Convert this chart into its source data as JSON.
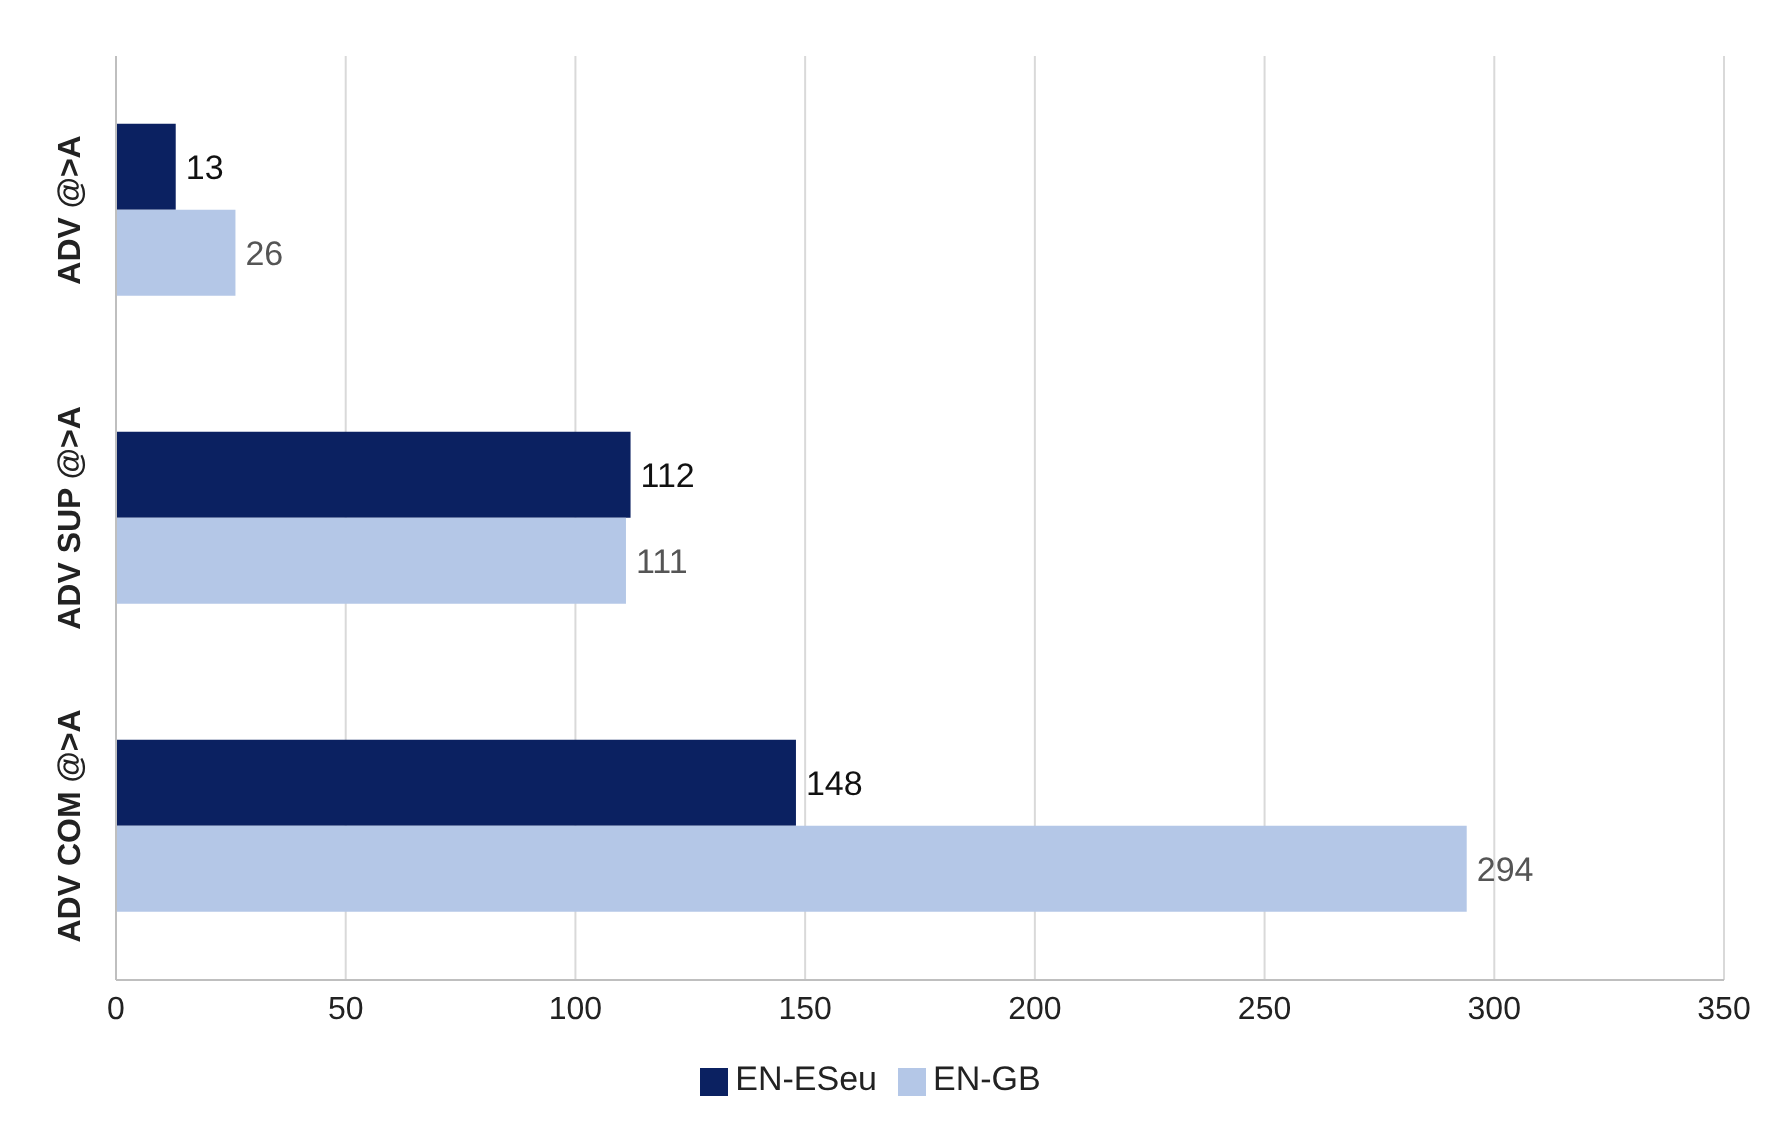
{
  "chart_data": {
    "type": "bar",
    "orientation": "horizontal",
    "categories": [
      "ADV @>A",
      "ADV SUP @>A",
      "ADV COM @>A"
    ],
    "series": [
      {
        "name": "EN-ESeu",
        "color": "#0b2161",
        "values": [
          13,
          112,
          148
        ]
      },
      {
        "name": "EN-GB",
        "color": "#b4c7e7",
        "values": [
          26,
          111,
          294
        ]
      }
    ],
    "xlim": [
      0,
      350
    ],
    "xticks": [
      0,
      50,
      100,
      150,
      200,
      250,
      300,
      350
    ],
    "grid": "x",
    "legend": "bottom",
    "data_labels": true
  }
}
